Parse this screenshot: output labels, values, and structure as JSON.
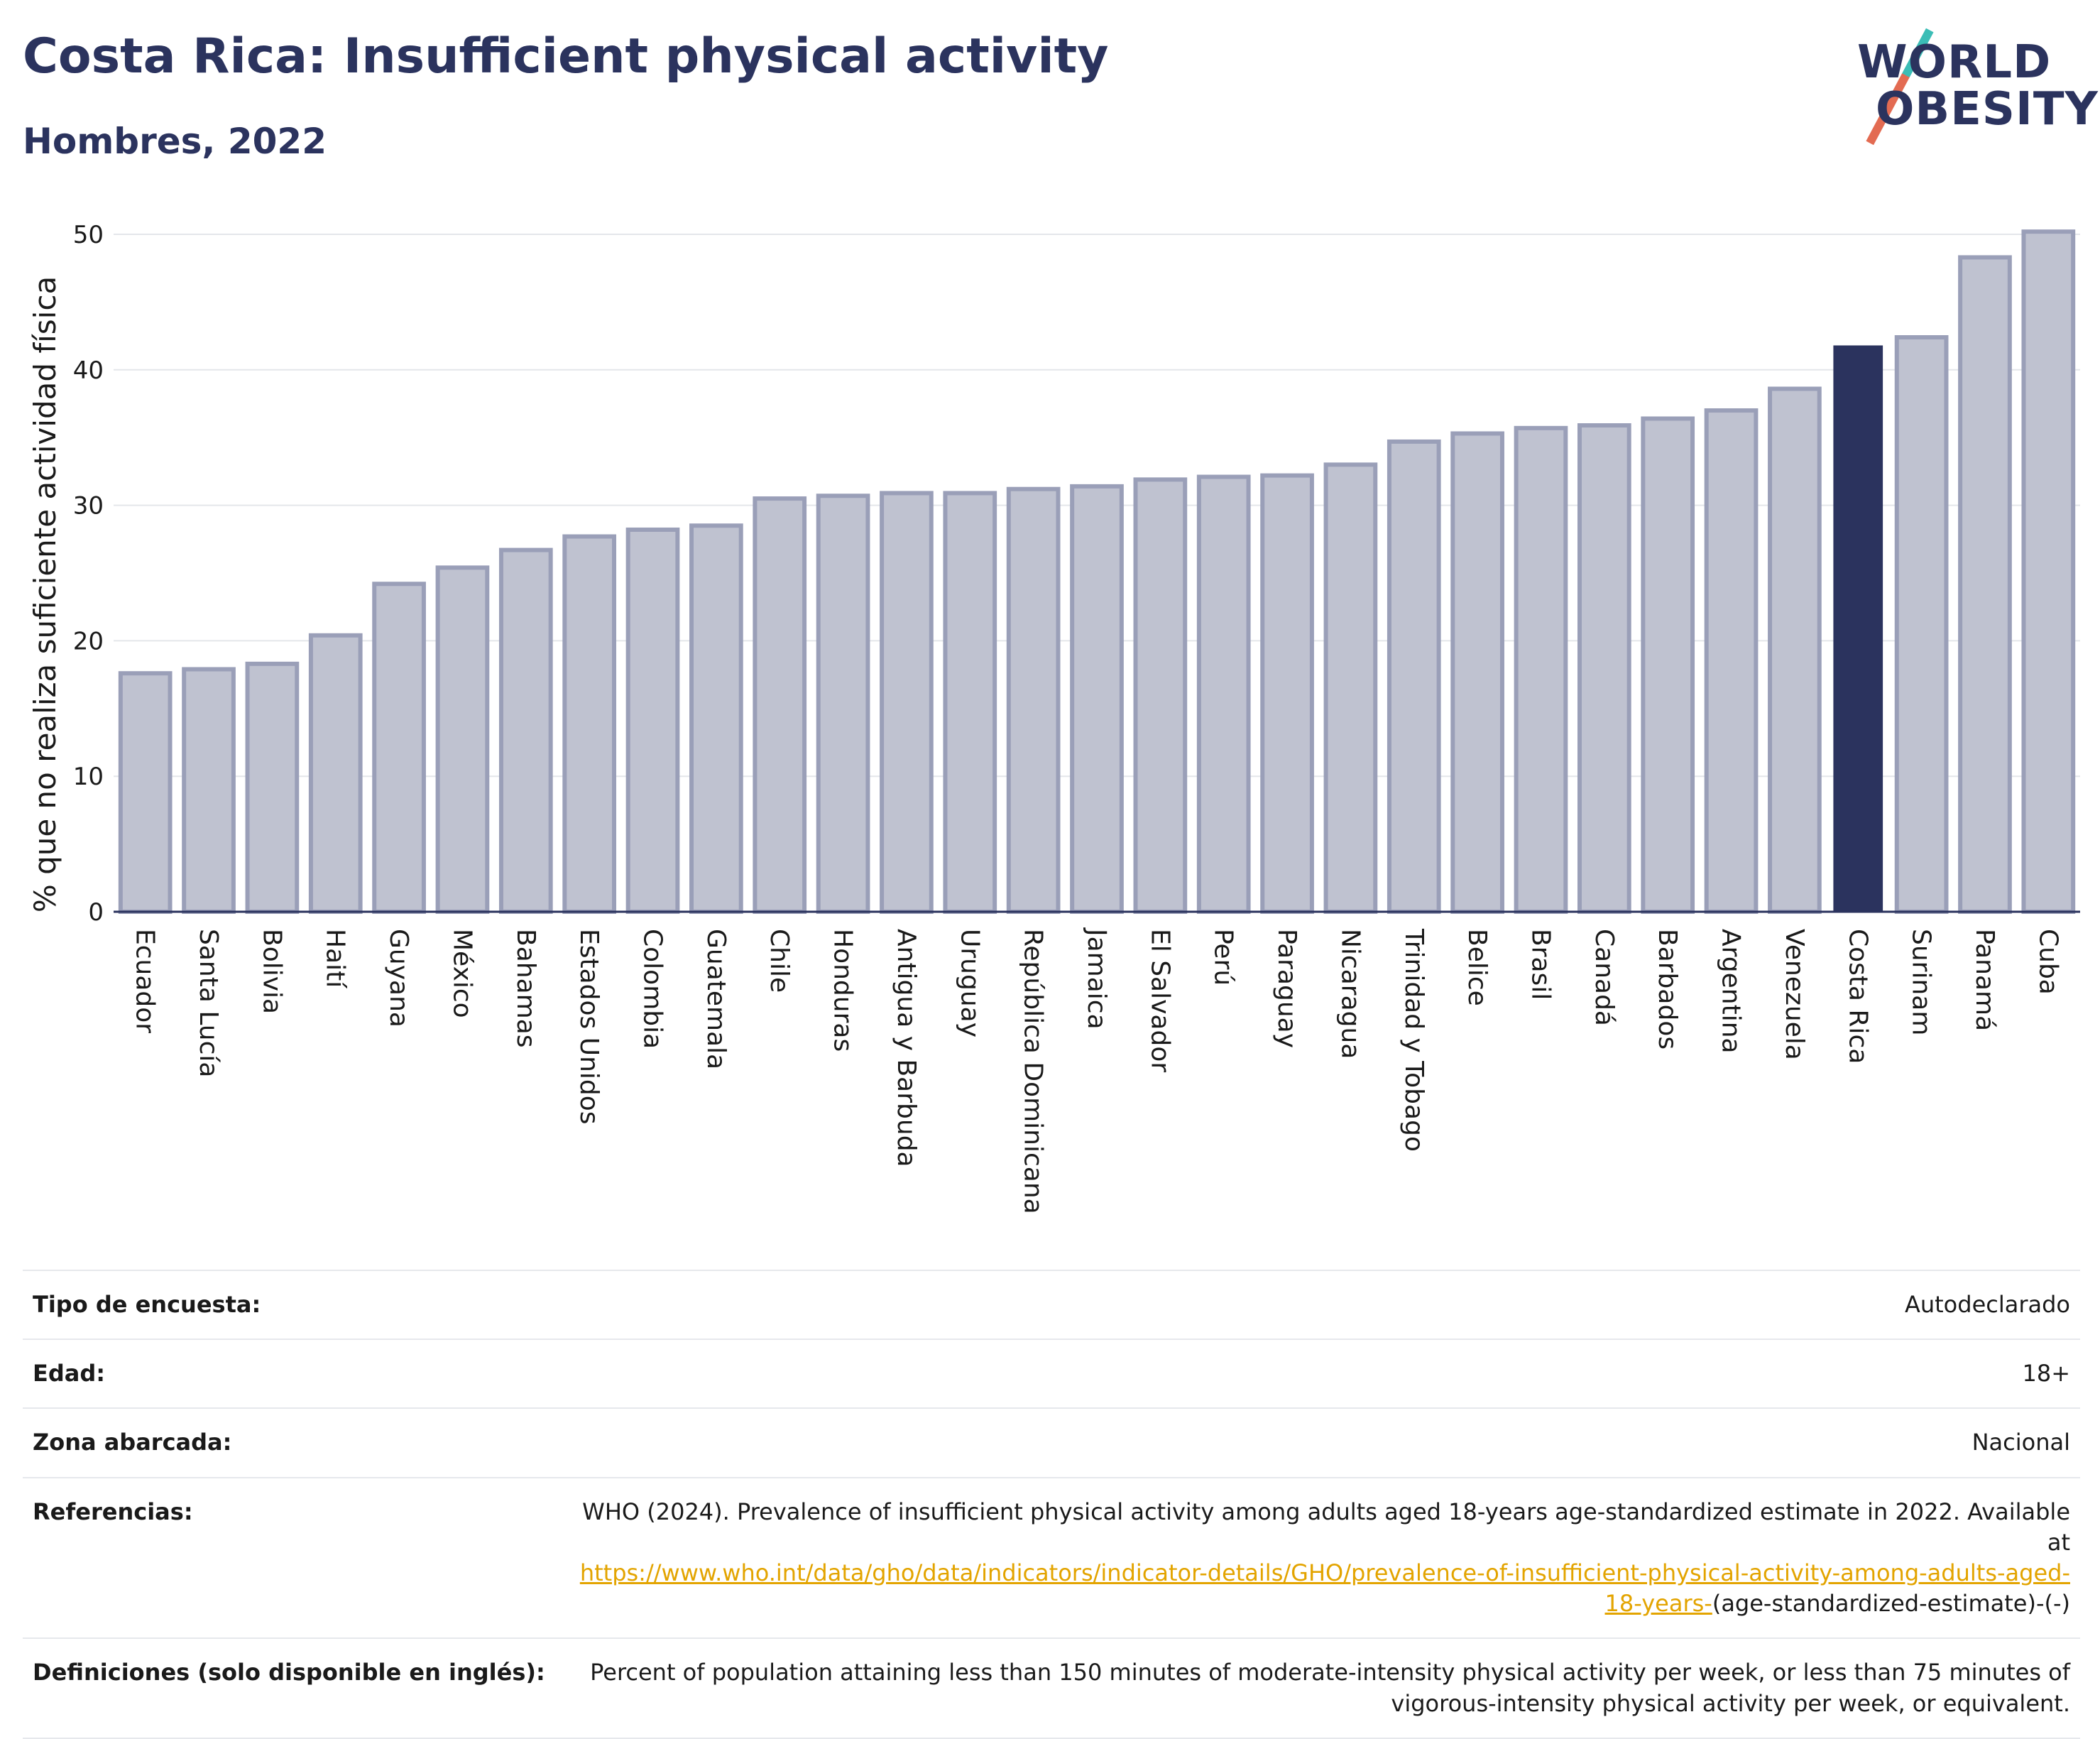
{
  "header": {
    "title": "Costa Rica: Insufficient physical activity",
    "subtitle": "Hombres, 2022",
    "logo_line1": "WORLD",
    "logo_line2": "OBESITY"
  },
  "colors": {
    "bar_default": "#bfc2d0",
    "bar_default_border": "#9a9fb8",
    "bar_highlight": "#2b335e",
    "grid": "#e4e6ea",
    "axis": "#2b335e",
    "link": "#e3a400"
  },
  "chart_data": {
    "type": "bar",
    "title": "",
    "xlabel": "",
    "ylabel": "% que no realiza suficiente actividad física",
    "ylim": [
      0,
      50
    ],
    "yticks": [
      0,
      10,
      20,
      30,
      40,
      50
    ],
    "grid": true,
    "highlight": "Costa Rica",
    "categories": [
      "Ecuador",
      "Santa Lucía",
      "Bolivia",
      "Haití",
      "Guyana",
      "México",
      "Bahamas",
      "Estados Unidos",
      "Colombia",
      "Guatemala",
      "Chile",
      "Honduras",
      "Antigua y Barbuda",
      "Uruguay",
      "República Dominicana",
      "Jamaica",
      "El Salvador",
      "Perú",
      "Paraguay",
      "Nicaragua",
      "Trinidad y Tobago",
      "Belice",
      "Brasil",
      "Canadá",
      "Barbados",
      "Argentina",
      "Venezuela",
      "Costa Rica",
      "Surinam",
      "Panamá",
      "Cuba"
    ],
    "values": [
      17.6,
      17.9,
      18.3,
      20.4,
      24.2,
      25.4,
      26.7,
      27.7,
      28.2,
      28.5,
      30.5,
      30.7,
      30.9,
      30.9,
      31.2,
      31.4,
      31.9,
      32.1,
      32.2,
      33.0,
      34.7,
      35.3,
      35.7,
      35.9,
      36.4,
      37.0,
      38.6,
      41.8,
      42.4,
      48.3,
      50.2
    ]
  },
  "info": {
    "survey_type_label": "Tipo de encuesta:",
    "survey_type_value": "Autodeclarado",
    "age_label": "Edad:",
    "age_value": "18+",
    "area_label": "Zona abarcada:",
    "area_value": "Nacional",
    "references_label": "Referencias:",
    "references_text": "WHO (2024). Prevalence of insufficient physical activity among adults aged 18-years age-standardized estimate in 2022. Available at",
    "references_link": "https://www.who.int/data/gho/data/indicators/indicator-details/GHO/prevalence-of-insufficient-physical-activity-among-adults-aged-18-years-",
    "references_suffix": "(age-standardized-estimate)-(-)",
    "definitions_label": "Definiciones (solo disponible en inglés):",
    "definitions_text": "Percent of population attaining less than 150 minutes of moderate-intensity physical activity per week, or less than 75 minutes of vigorous-intensity physical activity per week, or equivalent."
  }
}
